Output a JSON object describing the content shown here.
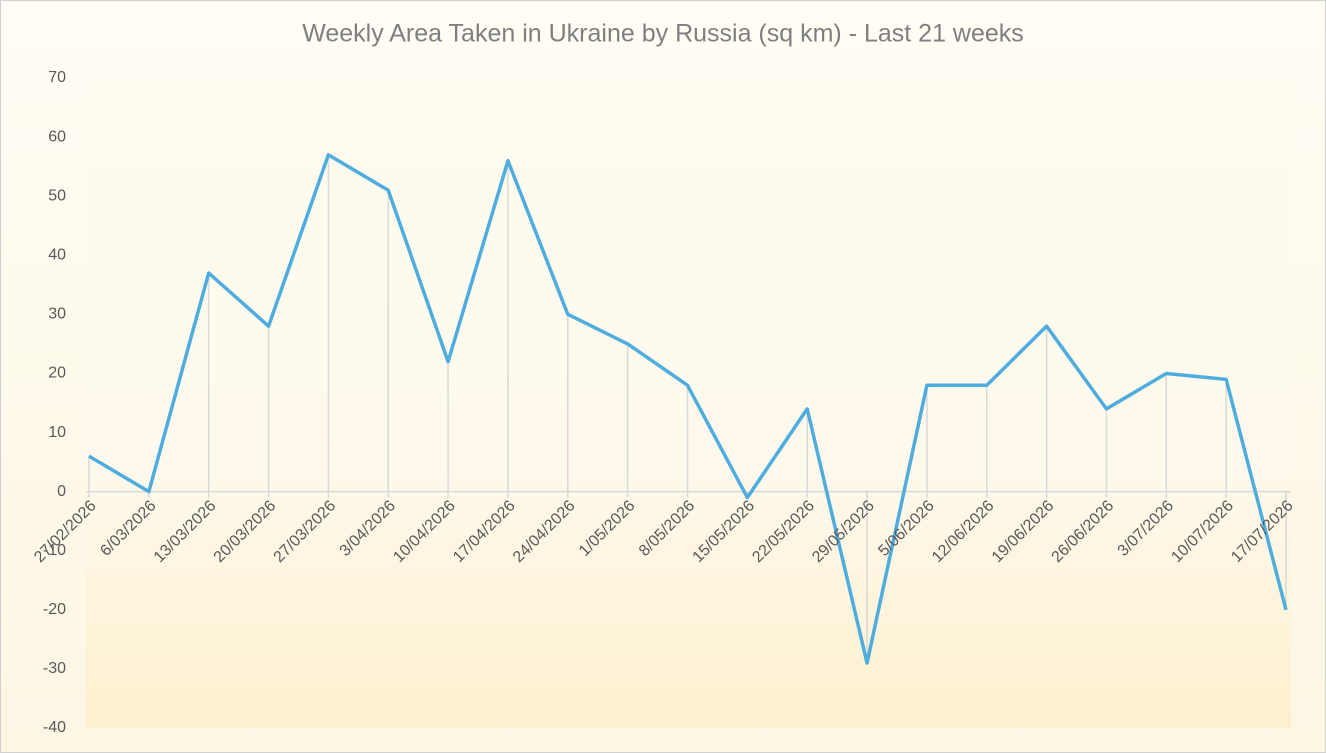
{
  "chart_data": {
    "type": "line",
    "title": "Weekly Area Taken in Ukraine by Russia (sq km) - Last 21 weeks",
    "categories": [
      "27/02/2026",
      "6/03/2026",
      "13/03/2026",
      "20/03/2026",
      "27/03/2026",
      "3/04/2026",
      "10/04/2026",
      "17/04/2026",
      "24/04/2026",
      "1/05/2026",
      "8/05/2026",
      "15/05/2026",
      "22/05/2026",
      "29/05/2026",
      "5/06/2026",
      "12/06/2026",
      "19/06/2026",
      "26/06/2026",
      "3/07/2026",
      "10/07/2026",
      "17/07/2026"
    ],
    "values": [
      6,
      0,
      37,
      28,
      57,
      51,
      22,
      56,
      30,
      25,
      18,
      -1,
      14,
      -29,
      18,
      18,
      28,
      14,
      20,
      19,
      -20
    ],
    "color": "#4eadde",
    "ylim": [
      -40,
      70
    ],
    "yticks": [
      -40,
      -30,
      -20,
      -10,
      0,
      10,
      20,
      30,
      40,
      50,
      60,
      70
    ],
    "drop_lines": true
  }
}
